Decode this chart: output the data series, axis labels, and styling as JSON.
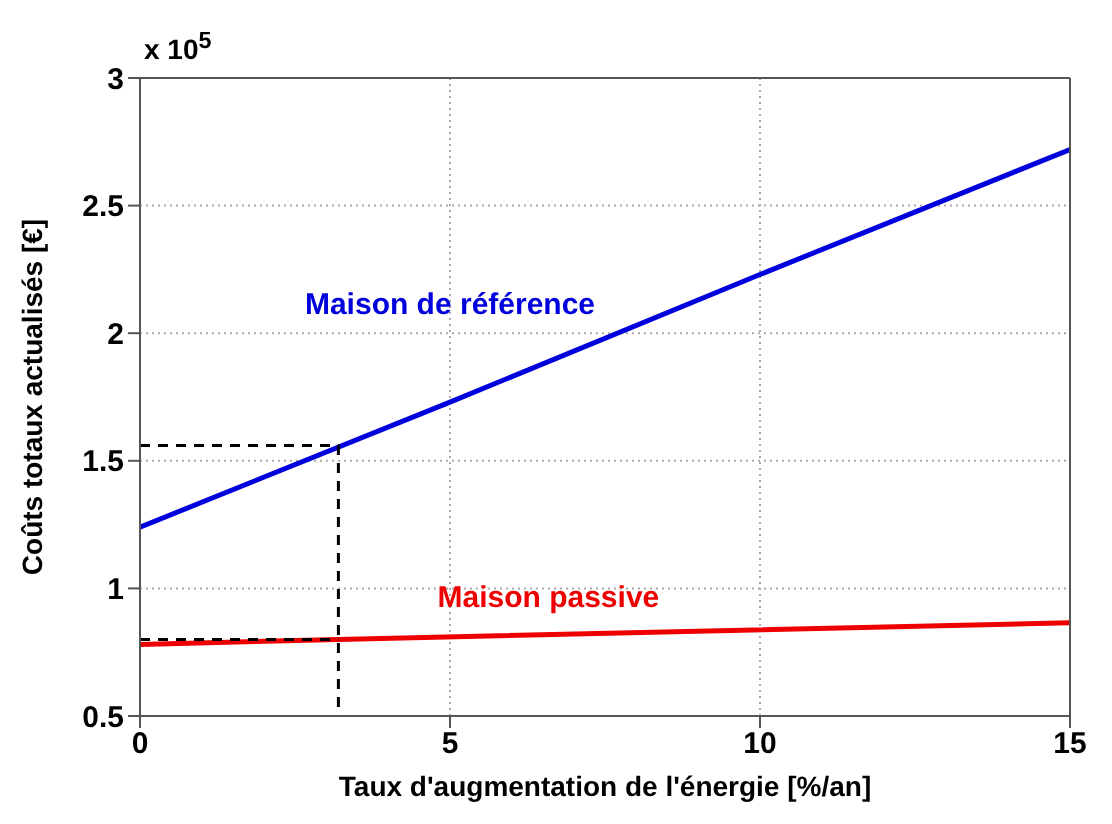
{
  "chart_data": {
    "type": "line",
    "xlabel": "Taux d'augmentation de l'énergie [%/an]",
    "ylabel": "Coûts totaux actualisés [€]",
    "annotations": [
      "x 10$^{5}$"
    ],
    "xlim": [
      0,
      15
    ],
    "xticks": [
      0,
      5,
      10,
      15
    ],
    "ylim": [
      0.5,
      3
    ],
    "yticks": [
      0.5,
      1,
      1.5,
      2,
      2.5,
      3
    ],
    "grid": true,
    "marker": "none",
    "series": [
      {
        "name": "Maison de référence",
        "color": "#0000dd",
        "x": [
          0,
          5,
          10,
          15
        ],
        "values": [
          1.24,
          1.73,
          2.23,
          2.72
        ],
        "line_style": "solid"
      },
      {
        "name": "Maison passive",
        "color": "#ee0000",
        "x": [
          0,
          3.2,
          15
        ],
        "values": [
          0.78,
          0.8,
          0.865
        ],
        "line_style": "solid"
      },
      {
        "color": "#000000",
        "x": [
          0,
          3.2,
          3.2
        ],
        "values": [
          1.56,
          1.56,
          0.5
        ],
        "line_style": "dashed"
      },
      {
        "color": "#000000",
        "x": [
          0,
          3.2
        ],
        "values": [
          0.8,
          0.8
        ],
        "line_style": "dashed"
      }
    ]
  }
}
